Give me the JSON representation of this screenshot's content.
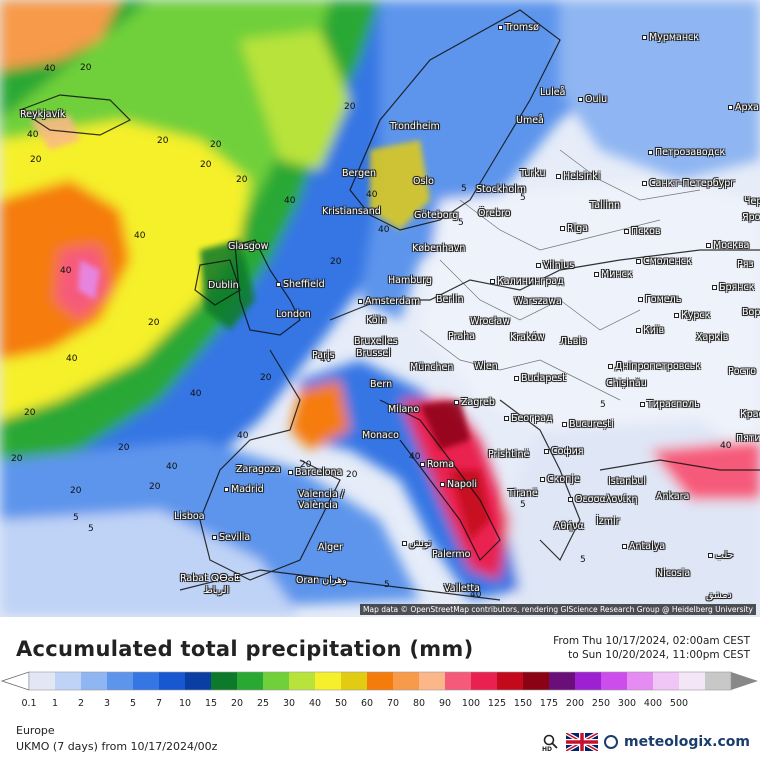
{
  "map": {
    "attribution": "Map data © OpenStreetMap contributors, rendering GIScience Research Group @ Heidelberg University",
    "cities": [
      {
        "name": "Tromsø",
        "key": "tromso"
      },
      {
        "name": "Мурманск",
        "key": "murmansk"
      },
      {
        "name": "Reykjavík",
        "key": "reykjavik"
      },
      {
        "name": "Luleå",
        "key": "lulea"
      },
      {
        "name": "Oulu",
        "key": "oulu"
      },
      {
        "name": "Арха",
        "key": "arkh"
      },
      {
        "name": "Umeå",
        "key": "umea"
      },
      {
        "name": "Trondheim",
        "key": "trondheim"
      },
      {
        "name": "Петрозаводск",
        "key": "petrozavodsk"
      },
      {
        "name": "Turku",
        "key": "turku"
      },
      {
        "name": "Helsinki",
        "key": "helsinki"
      },
      {
        "name": "Bergen",
        "key": "bergen"
      },
      {
        "name": "Oslo",
        "key": "oslo"
      },
      {
        "name": "Stockholm",
        "key": "stockholm"
      },
      {
        "name": "Санкт-Петербург",
        "key": "spb"
      },
      {
        "name": "Чер",
        "key": "cher"
      },
      {
        "name": "Kristiansand",
        "key": "kristiansand"
      },
      {
        "name": "Göteborg",
        "key": "goteborg"
      },
      {
        "name": "Örebro",
        "key": "orebro"
      },
      {
        "name": "Tallinn",
        "key": "tallinn"
      },
      {
        "name": "Яросл",
        "key": "yarosl"
      },
      {
        "name": "Псков",
        "key": "pskov"
      },
      {
        "name": "Glasgow",
        "key": "glasgow"
      },
      {
        "name": "København",
        "key": "kobenhavn"
      },
      {
        "name": "Riga",
        "key": "riga"
      },
      {
        "name": "Москва",
        "key": "moskva"
      },
      {
        "name": "Vilnius",
        "key": "vilnius"
      },
      {
        "name": "Смоленск",
        "key": "smolensk"
      },
      {
        "name": "Ряз",
        "key": "ryaz"
      },
      {
        "name": "Dublin",
        "key": "dublin"
      },
      {
        "name": "Sheffield",
        "key": "sheffield"
      },
      {
        "name": "Hamburg",
        "key": "hamburg"
      },
      {
        "name": "Калининград",
        "key": "kaliningrad"
      },
      {
        "name": "Минск",
        "key": "minsk"
      },
      {
        "name": "Брянск",
        "key": "bryansk"
      },
      {
        "name": "Amsterdam",
        "key": "amsterdam"
      },
      {
        "name": "Berlin",
        "key": "berlin"
      },
      {
        "name": "Warszawa",
        "key": "warszawa"
      },
      {
        "name": "Гомель",
        "key": "gomel"
      },
      {
        "name": "Ворон",
        "key": "voron"
      },
      {
        "name": "London",
        "key": "london"
      },
      {
        "name": "Köln",
        "key": "koln"
      },
      {
        "name": "Wrocław",
        "key": "wroclaw"
      },
      {
        "name": "Курск",
        "key": "kursk"
      },
      {
        "name": "Київ",
        "key": "kyiv"
      },
      {
        "name": "Bruxelles",
        "key": "bruxelles"
      },
      {
        "name": "Brussel",
        "key": "brussel"
      },
      {
        "name": "Praha",
        "key": "praha"
      },
      {
        "name": "Kraków",
        "key": "krakow"
      },
      {
        "name": "Львів",
        "key": "lviv"
      },
      {
        "name": "Харків",
        "key": "kharkiv"
      },
      {
        "name": "Paris",
        "key": "paris"
      },
      {
        "name": "München",
        "key": "munchen"
      },
      {
        "name": "Wien",
        "key": "wien"
      },
      {
        "name": "Дніпропетровськ",
        "key": "dnipro"
      },
      {
        "name": "Росто",
        "key": "rosto"
      },
      {
        "name": "Budapest",
        "key": "budapest"
      },
      {
        "name": "Chișinău",
        "key": "chisinau"
      },
      {
        "name": "Bern",
        "key": "bern"
      },
      {
        "name": "Тирасполь",
        "key": "tiraspol"
      },
      {
        "name": "Zagreb",
        "key": "zagreb"
      },
      {
        "name": "Milano",
        "key": "milano"
      },
      {
        "name": "Београд",
        "key": "beograd"
      },
      {
        "name": "Красно",
        "key": "krasno"
      },
      {
        "name": "Monaco",
        "key": "monaco"
      },
      {
        "name": "București",
        "key": "bucuresti"
      },
      {
        "name": "Пяти",
        "key": "pyati"
      },
      {
        "name": "Prishtinë",
        "key": "prishtine"
      },
      {
        "name": "София",
        "key": "sofia"
      },
      {
        "name": "Zaragoza",
        "key": "zaragoza"
      },
      {
        "name": "Roma",
        "key": "roma"
      },
      {
        "name": "Barcelona",
        "key": "barcelona"
      },
      {
        "name": "Istanbul",
        "key": "istanbul"
      },
      {
        "name": "Скопје",
        "key": "skopje"
      },
      {
        "name": "Madrid",
        "key": "madrid"
      },
      {
        "name": "Napoli",
        "key": "napoli"
      },
      {
        "name": "Tiranë",
        "key": "tirane"
      },
      {
        "name": "Θεσσαλονίκη",
        "key": "thessaloniki"
      },
      {
        "name": "Ankara",
        "key": "ankara"
      },
      {
        "name": "Valencia /",
        "key": "valencia1"
      },
      {
        "name": "València",
        "key": "valencia2"
      },
      {
        "name": "Lisboa",
        "key": "lisboa"
      },
      {
        "name": "İzmir",
        "key": "izmir"
      },
      {
        "name": "Αθήνα",
        "key": "athina"
      },
      {
        "name": "Sevilla",
        "key": "sevilla"
      },
      {
        "name": "Palermo",
        "key": "palermo"
      },
      {
        "name": "Alger",
        "key": "alger"
      },
      {
        "name": "تونس",
        "key": "tunis"
      },
      {
        "name": "Antalya",
        "key": "antalya"
      },
      {
        "name": "حلب",
        "key": "halab"
      },
      {
        "name": "Valletta",
        "key": "valletta"
      },
      {
        "name": "Nicosia",
        "key": "nicosia"
      },
      {
        "name": "Rabat ⵕⴱⴰⵟ",
        "key": "rabat"
      },
      {
        "name": "الرباط",
        "key": "rabat_ar"
      },
      {
        "name": "Oran وهران",
        "key": "oran"
      },
      {
        "name": "دمشق",
        "key": "dimashq"
      }
    ],
    "isolines": [
      "40",
      "20",
      "40",
      "20",
      "20",
      "20",
      "20",
      "40",
      "40",
      "20",
      "40",
      "20",
      "40",
      "20",
      "40",
      "40",
      "40",
      "20",
      "20",
      "20",
      "20",
      "5",
      "5",
      "5",
      "5",
      "5",
      "20",
      "40",
      "40",
      "40",
      "40",
      "5",
      "5",
      "5",
      "20",
      "20",
      "5",
      "40",
      "40",
      "20",
      "5",
      "20"
    ]
  },
  "header": {
    "title": "Accumulated total precipitation (mm)",
    "period_from": "From Thu 10/17/2024, 02:00am CEST",
    "period_to": "to Sun 10/20/2024, 11:00pm CEST"
  },
  "legend": {
    "ticks": [
      "0.1",
      "1",
      "2",
      "3",
      "5",
      "7",
      "10",
      "15",
      "20",
      "25",
      "30",
      "40",
      "50",
      "60",
      "70",
      "80",
      "90",
      "100",
      "125",
      "150",
      "175",
      "200",
      "250",
      "300",
      "400",
      "500"
    ],
    "colors": [
      "#e3e6f5",
      "#bfd3f6",
      "#8fb6f2",
      "#5d95ec",
      "#3576e4",
      "#1758d0",
      "#0b3ea3",
      "#0d7a2b",
      "#2aa834",
      "#6fd03a",
      "#b8e33b",
      "#f5f02b",
      "#e2cc12",
      "#f57c0a",
      "#f79a4a",
      "#fbb78a",
      "#f65a7a",
      "#e9214f",
      "#c30a1c",
      "#8b0215",
      "#6a0f78",
      "#9d21d3",
      "#cc4cec",
      "#e58cf2",
      "#efc6f5",
      "#f3e6f7",
      "#c8c8c8"
    ]
  },
  "footer": {
    "region": "Europe",
    "model": "UKMO (7 days) from 10/17/2024/00z",
    "brand": "meteologix.com",
    "hd_label": "HD"
  },
  "colors": {
    "sea_north": "#2e67d8",
    "dry_land": "#eef2fa",
    "high_precip": "#e9214f",
    "brand": "#1b3d6d"
  }
}
